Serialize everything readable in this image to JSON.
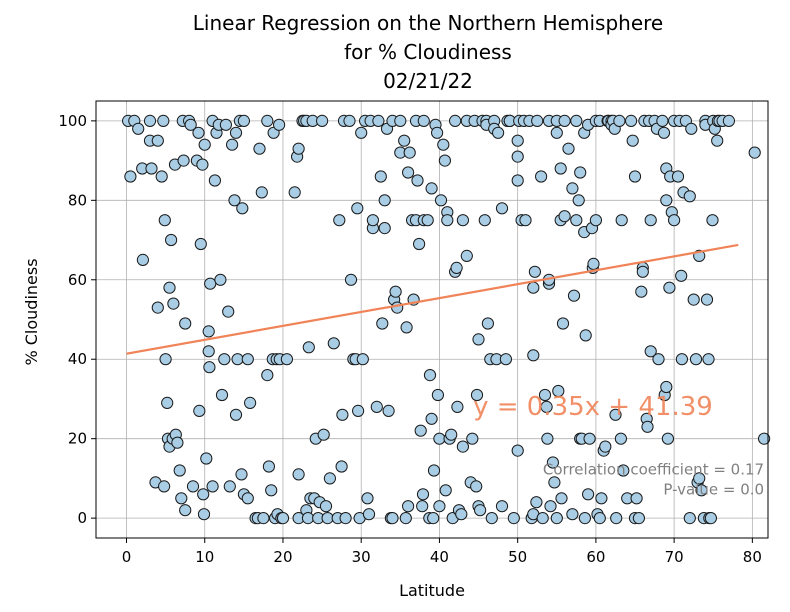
{
  "chart_data": {
    "type": "scatter",
    "title_lines": [
      "Linear Regression on the Northern Hemisphere",
      "for % Cloudiness",
      "02/21/22"
    ],
    "xlabel": "Latitude",
    "ylabel": "% Cloudiness",
    "xlim": [
      -3.9,
      82
    ],
    "ylim": [
      -5,
      105
    ],
    "xticks": [
      "0",
      "10",
      "20",
      "30",
      "40",
      "50",
      "60",
      "70",
      "80"
    ],
    "yticks": [
      "0",
      "20",
      "40",
      "60",
      "80",
      "100"
    ],
    "grid": true,
    "regression": {
      "slope": 0.35,
      "intercept": 41.39,
      "x_range": [
        0,
        78.2
      ]
    },
    "annotations": {
      "equation": "y = 0.35x + 41.39",
      "equation_pos": [
        44.3,
        26
      ],
      "correlation": "Correlation coefficient = 0.17",
      "correlation_pos": [
        81.5,
        11
      ],
      "pvalue": "P-value = 0.0",
      "pvalue_pos": [
        81.5,
        6
      ]
    },
    "colors": {
      "marker_fill": "#a9cde4",
      "marker_edge": "#1a1a1a",
      "line": "#f08458",
      "stats_text": "#808080"
    },
    "points": [
      [
        0.2,
        100
      ],
      [
        0.5,
        86
      ],
      [
        1,
        100
      ],
      [
        1.5,
        98
      ],
      [
        2,
        88
      ],
      [
        2.1,
        65
      ],
      [
        3,
        95
      ],
      [
        3,
        100
      ],
      [
        3.2,
        88
      ],
      [
        3.7,
        9
      ],
      [
        4,
        53
      ],
      [
        4,
        95
      ],
      [
        4.5,
        86
      ],
      [
        4.7,
        100
      ],
      [
        4.8,
        8
      ],
      [
        4.9,
        75
      ],
      [
        5,
        40
      ],
      [
        5.2,
        29
      ],
      [
        5.3,
        20
      ],
      [
        5.5,
        18
      ],
      [
        5.5,
        58
      ],
      [
        5.7,
        70
      ],
      [
        5.9,
        20
      ],
      [
        6,
        54
      ],
      [
        6.2,
        89
      ],
      [
        6.3,
        21
      ],
      [
        6.5,
        19
      ],
      [
        6.8,
        12
      ],
      [
        7,
        5
      ],
      [
        7.2,
        100
      ],
      [
        7.3,
        90
      ],
      [
        7.5,
        2
      ],
      [
        7.5,
        49
      ],
      [
        8,
        100
      ],
      [
        8.2,
        99
      ],
      [
        8.5,
        8
      ],
      [
        9,
        90
      ],
      [
        9.2,
        97
      ],
      [
        9.3,
        27
      ],
      [
        9.5,
        69
      ],
      [
        9.7,
        89
      ],
      [
        9.8,
        6
      ],
      [
        9.9,
        1
      ],
      [
        10,
        94
      ],
      [
        10.2,
        15
      ],
      [
        10.5,
        47
      ],
      [
        10.5,
        42
      ],
      [
        10.6,
        38
      ],
      [
        10.7,
        59
      ],
      [
        11,
        8
      ],
      [
        11,
        100
      ],
      [
        11.3,
        85
      ],
      [
        11.5,
        97
      ],
      [
        11.8,
        99
      ],
      [
        12,
        60
      ],
      [
        12.2,
        31
      ],
      [
        12.5,
        40
      ],
      [
        12.7,
        99
      ],
      [
        13,
        52
      ],
      [
        13.2,
        8
      ],
      [
        13.5,
        94
      ],
      [
        13.8,
        80
      ],
      [
        14,
        97
      ],
      [
        14,
        26
      ],
      [
        14.2,
        40
      ],
      [
        14.5,
        100
      ],
      [
        14.7,
        11
      ],
      [
        14.8,
        78
      ],
      [
        15,
        100
      ],
      [
        15,
        6
      ],
      [
        15.5,
        5
      ],
      [
        15.5,
        40
      ],
      [
        15.8,
        29
      ],
      [
        16.5,
        0
      ],
      [
        16.8,
        0
      ],
      [
        17,
        93
      ],
      [
        17.3,
        82
      ],
      [
        17.5,
        0
      ],
      [
        18,
        100
      ],
      [
        18,
        36
      ],
      [
        18.2,
        13
      ],
      [
        18.5,
        7
      ],
      [
        18.7,
        40
      ],
      [
        18.8,
        97
      ],
      [
        19,
        0
      ],
      [
        19.2,
        40
      ],
      [
        19.3,
        1
      ],
      [
        19.5,
        99
      ],
      [
        19.6,
        40
      ],
      [
        19.8,
        0
      ],
      [
        20,
        0
      ],
      [
        20.5,
        40
      ],
      [
        21.5,
        82
      ],
      [
        21.8,
        91
      ],
      [
        22,
        11
      ],
      [
        22,
        93
      ],
      [
        22,
        0
      ],
      [
        22.5,
        100
      ],
      [
        22.7,
        100
      ],
      [
        23,
        2
      ],
      [
        23,
        100
      ],
      [
        23.2,
        0
      ],
      [
        23.3,
        43
      ],
      [
        23.5,
        5
      ],
      [
        23.8,
        100
      ],
      [
        24,
        5
      ],
      [
        24.2,
        20
      ],
      [
        24.5,
        0
      ],
      [
        24.7,
        4
      ],
      [
        25,
        100
      ],
      [
        25.2,
        21
      ],
      [
        25.5,
        3
      ],
      [
        25.7,
        0
      ],
      [
        26,
        10
      ],
      [
        26.5,
        44
      ],
      [
        27,
        0
      ],
      [
        27.2,
        75
      ],
      [
        27.5,
        13
      ],
      [
        27.6,
        26
      ],
      [
        27.8,
        100
      ],
      [
        28,
        0
      ],
      [
        28.5,
        100
      ],
      [
        28.7,
        60
      ],
      [
        29,
        40
      ],
      [
        29.3,
        40
      ],
      [
        29.5,
        78
      ],
      [
        29.6,
        27
      ],
      [
        29.8,
        0
      ],
      [
        30,
        97
      ],
      [
        30.2,
        40
      ],
      [
        30.5,
        100
      ],
      [
        30.8,
        5
      ],
      [
        31,
        1
      ],
      [
        31.2,
        100
      ],
      [
        31.5,
        73
      ],
      [
        31.5,
        75
      ],
      [
        32,
        28
      ],
      [
        32.2,
        100
      ],
      [
        32.5,
        86
      ],
      [
        32.7,
        49
      ],
      [
        33,
        80
      ],
      [
        33,
        73
      ],
      [
        33.3,
        98
      ],
      [
        33.5,
        27
      ],
      [
        33.8,
        0
      ],
      [
        34,
        0
      ],
      [
        34,
        100
      ],
      [
        34.2,
        55
      ],
      [
        34.4,
        57
      ],
      [
        34.6,
        53
      ],
      [
        35,
        100
      ],
      [
        35,
        92
      ],
      [
        35.5,
        95
      ],
      [
        35.7,
        0
      ],
      [
        35.8,
        48
      ],
      [
        36,
        87
      ],
      [
        36,
        3
      ],
      [
        36.2,
        92
      ],
      [
        36.5,
        75
      ],
      [
        36.7,
        55
      ],
      [
        37,
        100
      ],
      [
        37,
        75
      ],
      [
        37.2,
        85
      ],
      [
        37.4,
        69
      ],
      [
        37.6,
        22
      ],
      [
        37.8,
        3
      ],
      [
        37.9,
        6
      ],
      [
        38,
        75
      ],
      [
        38,
        100
      ],
      [
        38.5,
        75
      ],
      [
        38.7,
        0
      ],
      [
        38.8,
        36
      ],
      [
        39,
        83
      ],
      [
        39,
        25
      ],
      [
        39.2,
        0
      ],
      [
        39.3,
        12
      ],
      [
        39.5,
        99
      ],
      [
        39.7,
        97
      ],
      [
        39.8,
        31
      ],
      [
        40,
        20
      ],
      [
        40,
        3
      ],
      [
        40.2,
        80
      ],
      [
        40.5,
        94
      ],
      [
        40.7,
        90
      ],
      [
        40.8,
        7
      ],
      [
        41,
        77
      ],
      [
        41,
        75
      ],
      [
        41.3,
        20
      ],
      [
        41.5,
        21
      ],
      [
        41.7,
        0
      ],
      [
        42,
        100
      ],
      [
        42,
        62
      ],
      [
        42.2,
        63
      ],
      [
        42.3,
        28
      ],
      [
        42.5,
        2
      ],
      [
        42.8,
        1
      ],
      [
        43,
        75
      ],
      [
        43,
        18
      ],
      [
        43.5,
        66
      ],
      [
        43.5,
        100
      ],
      [
        44,
        9
      ],
      [
        44.2,
        20
      ],
      [
        44.5,
        100
      ],
      [
        44.7,
        8
      ],
      [
        44.8,
        31
      ],
      [
        45,
        45
      ],
      [
        45,
        3
      ],
      [
        45.2,
        2
      ],
      [
        45.5,
        100
      ],
      [
        45.8,
        75
      ],
      [
        46,
        100
      ],
      [
        46,
        99
      ],
      [
        46.2,
        49
      ],
      [
        46.5,
        40
      ],
      [
        46.7,
        0
      ],
      [
        47,
        100
      ],
      [
        47,
        98
      ],
      [
        47.3,
        40
      ],
      [
        47.5,
        97
      ],
      [
        48,
        78
      ],
      [
        48,
        3
      ],
      [
        48.5,
        40
      ],
      [
        48.7,
        100
      ],
      [
        49,
        100
      ],
      [
        49,
        100
      ],
      [
        49.5,
        0
      ],
      [
        50,
        95
      ],
      [
        50,
        91
      ],
      [
        50,
        17
      ],
      [
        50,
        85
      ],
      [
        50.2,
        100
      ],
      [
        50.5,
        75
      ],
      [
        50.8,
        100
      ],
      [
        51,
        75
      ],
      [
        51.5,
        100
      ],
      [
        51.8,
        0
      ],
      [
        52,
        1
      ],
      [
        52,
        41
      ],
      [
        52,
        58
      ],
      [
        52.2,
        62
      ],
      [
        52.4,
        4
      ],
      [
        52.5,
        100
      ],
      [
        53,
        86
      ],
      [
        53.2,
        0
      ],
      [
        53.5,
        31
      ],
      [
        53.7,
        28
      ],
      [
        53.8,
        20
      ],
      [
        54,
        59
      ],
      [
        54,
        60
      ],
      [
        54,
        100
      ],
      [
        54.2,
        3
      ],
      [
        54.5,
        14
      ],
      [
        54.7,
        9
      ],
      [
        55,
        100
      ],
      [
        55,
        97
      ],
      [
        55,
        0
      ],
      [
        55.2,
        32
      ],
      [
        55.5,
        88
      ],
      [
        55.5,
        75
      ],
      [
        55.6,
        5
      ],
      [
        55.8,
        49
      ],
      [
        56,
        100
      ],
      [
        56,
        76
      ],
      [
        56.5,
        93
      ],
      [
        57,
        83
      ],
      [
        57,
        1
      ],
      [
        57.2,
        56
      ],
      [
        57.5,
        100
      ],
      [
        57.5,
        75
      ],
      [
        57.8,
        80
      ],
      [
        58,
        87
      ],
      [
        58,
        20
      ],
      [
        58.2,
        20
      ],
      [
        58.5,
        97
      ],
      [
        58.5,
        72
      ],
      [
        58.6,
        0
      ],
      [
        58.7,
        46
      ],
      [
        59,
        99
      ],
      [
        59,
        6
      ],
      [
        59.2,
        20
      ],
      [
        59.5,
        73
      ],
      [
        59.6,
        63
      ],
      [
        59.7,
        64
      ],
      [
        60,
        75
      ],
      [
        60,
        100
      ],
      [
        60.2,
        1
      ],
      [
        60.5,
        0
      ],
      [
        60.5,
        100
      ],
      [
        60.7,
        5
      ],
      [
        61,
        17
      ],
      [
        61.2,
        18
      ],
      [
        61.5,
        100
      ],
      [
        61.6,
        100
      ],
      [
        62,
        100
      ],
      [
        62,
        99
      ],
      [
        62.2,
        100
      ],
      [
        62.4,
        98
      ],
      [
        62.5,
        26
      ],
      [
        62.6,
        0
      ],
      [
        63,
        100
      ],
      [
        63.2,
        20
      ],
      [
        63.3,
        75
      ],
      [
        63.5,
        12
      ],
      [
        64,
        5
      ],
      [
        64.5,
        100
      ],
      [
        64.7,
        95
      ],
      [
        65,
        0
      ],
      [
        65,
        86
      ],
      [
        65.2,
        5
      ],
      [
        65.5,
        0
      ],
      [
        65.8,
        57
      ],
      [
        66,
        63
      ],
      [
        66,
        62
      ],
      [
        66.2,
        100
      ],
      [
        66.5,
        25
      ],
      [
        66.6,
        23
      ],
      [
        66.8,
        100
      ],
      [
        67,
        42
      ],
      [
        67,
        75
      ],
      [
        67.5,
        100
      ],
      [
        67.8,
        98
      ],
      [
        68,
        40
      ],
      [
        68.5,
        100
      ],
      [
        68.7,
        97
      ],
      [
        68.8,
        31
      ],
      [
        69,
        88
      ],
      [
        69,
        33
      ],
      [
        69,
        80
      ],
      [
        69.2,
        20
      ],
      [
        69.4,
        58
      ],
      [
        69.5,
        86
      ],
      [
        69.7,
        77
      ],
      [
        70,
        75
      ],
      [
        70,
        100
      ],
      [
        70.5,
        86
      ],
      [
        70.7,
        100
      ],
      [
        70.9,
        61
      ],
      [
        71,
        40
      ],
      [
        71.2,
        82
      ],
      [
        71.5,
        100
      ],
      [
        72,
        0
      ],
      [
        72,
        81
      ],
      [
        72.2,
        98
      ],
      [
        72.5,
        55
      ],
      [
        72.8,
        40
      ],
      [
        73,
        9
      ],
      [
        73.2,
        66
      ],
      [
        73.2,
        10
      ],
      [
        73.5,
        7
      ],
      [
        73.8,
        0
      ],
      [
        74,
        100
      ],
      [
        74,
        99
      ],
      [
        74.2,
        55
      ],
      [
        74.4,
        40
      ],
      [
        74.5,
        0
      ],
      [
        74.7,
        0
      ],
      [
        74.9,
        75
      ],
      [
        75,
        100
      ],
      [
        75.2,
        98
      ],
      [
        75.5,
        95
      ],
      [
        75.6,
        100
      ],
      [
        75.8,
        100
      ],
      [
        76.2,
        100
      ],
      [
        77,
        100
      ],
      [
        80.3,
        92
      ],
      [
        81.5,
        20
      ]
    ]
  }
}
